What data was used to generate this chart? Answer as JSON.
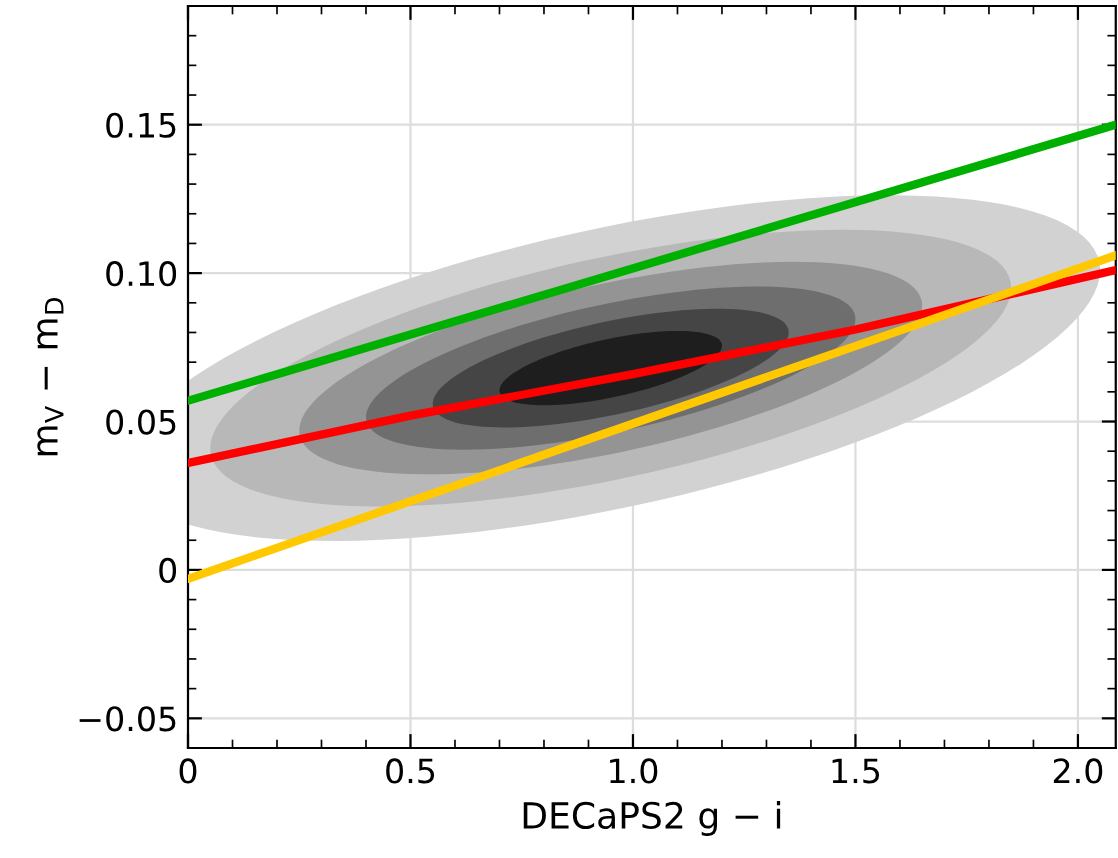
{
  "chart_data": {
    "type": "line",
    "xlabel": "DECaPS2 g − i",
    "ylabel": "m$_{V}$ − m$_{D}$",
    "xlim": [
      0,
      2.085
    ],
    "ylim": [
      -0.06,
      0.19
    ],
    "xticks": [
      0,
      0.5,
      {
        "value": 1.0,
        "label": "1.0"
      },
      1.5,
      {
        "value": 2.0,
        "label": "2.0"
      }
    ],
    "yticks": [
      {
        "value": -0.05,
        "label": "−0.05"
      },
      0,
      0.05,
      {
        "value": 0.1,
        "label": "0.10"
      },
      0.15
    ],
    "grid": true,
    "marker": "none",
    "line_style": "solid",
    "series": [
      {
        "color": "#00b000",
        "x": [
          0,
          2.085
        ],
        "values": [
          0.057,
          0.15
        ]
      },
      {
        "color": "#ff0000",
        "x": [
          0,
          0.5,
          1.0,
          1.5,
          2.085
        ],
        "values": [
          0.036,
          0.052,
          0.066,
          0.081,
          0.101
        ]
      },
      {
        "color": "#ffc800",
        "x": [
          0,
          2.085
        ],
        "values": [
          -0.003,
          0.106
        ]
      }
    ]
  }
}
